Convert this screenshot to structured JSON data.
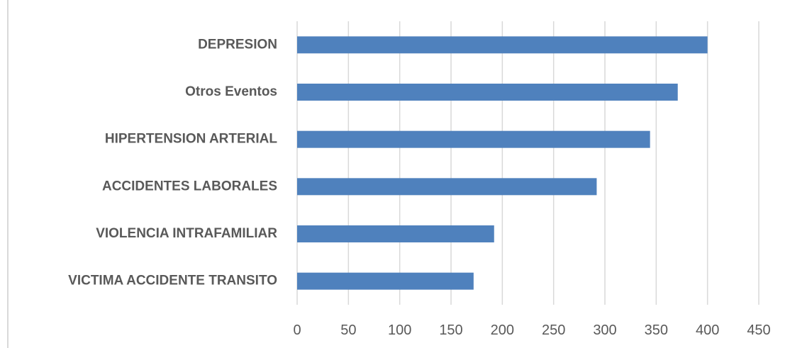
{
  "chart_data": {
    "type": "bar",
    "orientation": "horizontal",
    "categories": [
      "DEPRESION",
      "Otros Eventos",
      "HIPERTENSION ARTERIAL",
      "ACCIDENTES LABORALES",
      "VIOLENCIA INTRAFAMILIAR",
      "VICTIMA ACCIDENTE TRANSITO"
    ],
    "values": [
      400,
      371,
      344,
      292,
      192,
      172
    ],
    "xlim": [
      0,
      450
    ],
    "xticks": [
      0,
      50,
      100,
      150,
      200,
      250,
      300,
      350,
      400,
      450
    ],
    "title": "",
    "xlabel": "",
    "ylabel": "",
    "grid": "vertical",
    "legend": "none",
    "colors": {
      "bar": "#4f81bd",
      "grid": "#d9d9d9",
      "text": "#595959"
    }
  }
}
